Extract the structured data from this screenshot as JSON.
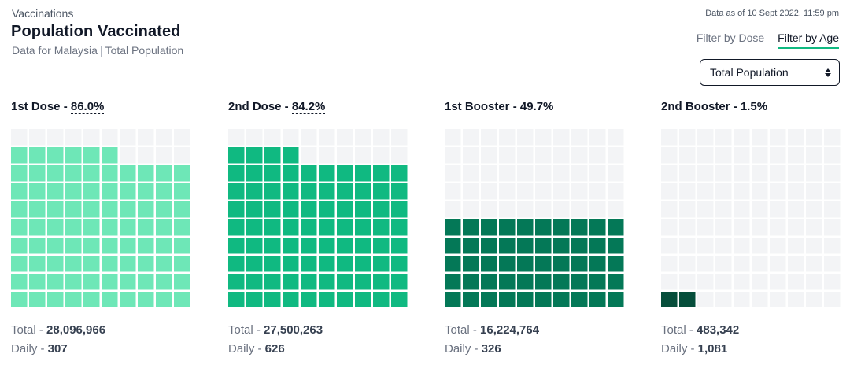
{
  "header": {
    "breadcrumb": "Vaccinations",
    "title": "Population Vaccinated",
    "subtitle_region": "Data for Malaysia",
    "subtitle_separator": "|",
    "subtitle_population": "Total Population",
    "data_date": "Data as of 10 Sept 2022, 11:59 pm"
  },
  "filters": {
    "tabs": [
      {
        "label": "Filter by Dose",
        "active": false
      },
      {
        "label": "Filter by Age",
        "active": true
      }
    ],
    "select": {
      "value": "Total Population"
    }
  },
  "colors": {
    "empty": "#f3f4f6",
    "dose1": "#6ee7b7",
    "dose2": "#10b981",
    "booster1": "#047857",
    "booster2": "#064e3b"
  },
  "doses": [
    {
      "label": "1st Dose - ",
      "percent_label": "86.0%",
      "percent": 86.0,
      "color": "#6ee7b7",
      "total_label": "Total - ",
      "total": "28,096,966",
      "daily_label": "Daily - ",
      "daily": "307",
      "underlined": true
    },
    {
      "label": "2nd Dose - ",
      "percent_label": "84.2%",
      "percent": 84.2,
      "color": "#10b981",
      "total_label": "Total - ",
      "total": "27,500,263",
      "daily_label": "Daily - ",
      "daily": "626",
      "underlined": true
    },
    {
      "label": "1st Booster - ",
      "percent_label": "49.7%",
      "percent": 49.7,
      "color": "#047857",
      "total_label": "Total - ",
      "total": "16,224,764",
      "daily_label": "Daily - ",
      "daily": "326",
      "underlined": false
    },
    {
      "label": "2nd Booster - ",
      "percent_label": "1.5%",
      "percent": 1.5,
      "color": "#064e3b",
      "total_label": "Total - ",
      "total": "483,342",
      "daily_label": "Daily - ",
      "daily": "1,081",
      "underlined": false
    }
  ]
}
